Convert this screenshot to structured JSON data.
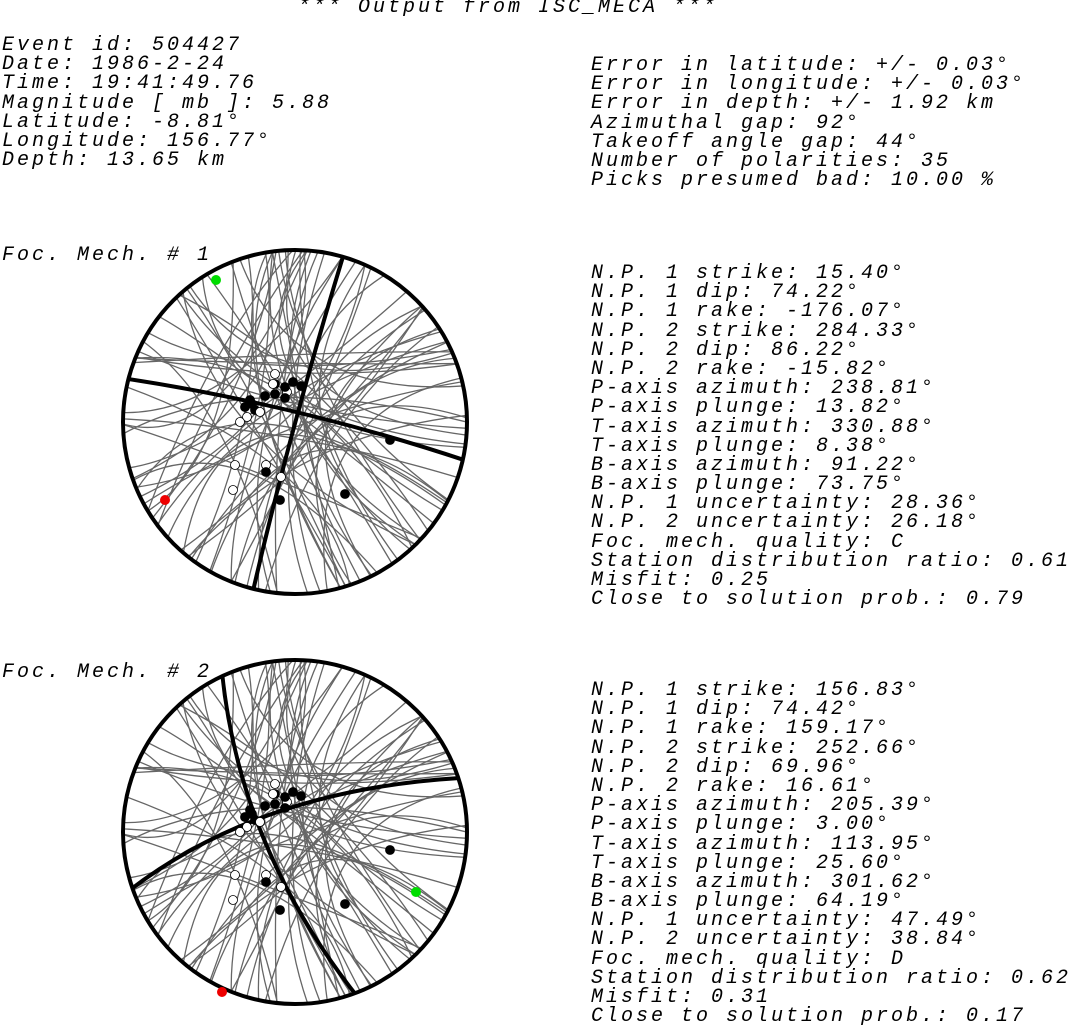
{
  "title": "*** Output from ISC_MECA ***",
  "event": [
    "Event id: 504427",
    "Date: 1986-2-24",
    "Time: 19:41:49.76",
    "Magnitude [ mb ]: 5.88",
    "Latitude: -8.81°",
    "Longitude: 156.77°",
    "Depth: 13.65 km"
  ],
  "errors": [
    "Error in latitude: +/- 0.03°",
    "Error in longitude: +/- 0.03°",
    "Error in depth: +/- 1.92 km",
    "Azimuthal gap: 92°",
    "Takeoff angle gap: 44°",
    "Number of polarities: 35",
    "Picks presumed bad: 10.00 %"
  ],
  "mechanisms": [
    {
      "label": "Foc. Mech. # 1",
      "lines": [
        "N.P. 1 strike: 15.40°",
        "N.P. 1 dip: 74.22°",
        "N.P. 1 rake: -176.07°",
        "N.P. 2 strike: 284.33°",
        "N.P. 2 dip: 86.22°",
        "N.P. 2 rake: -15.82°",
        "P-axis azimuth: 238.81°",
        "P-axis plunge: 13.82°",
        "T-axis azimuth: 330.88°",
        "T-axis plunge: 8.38°",
        "B-axis azimuth: 91.22°",
        "B-axis plunge: 73.75°",
        "N.P. 1 uncertainty: 28.36°",
        "N.P. 2 uncertainty: 26.18°",
        "Foc. mech. quality: C",
        "Station distribution ratio: 0.61",
        "Misfit: 0.25",
        "Close to solution prob.: 0.79"
      ]
    },
    {
      "label": "Foc. Mech. # 2",
      "lines": [
        "N.P. 1 strike: 156.83°",
        "N.P. 1 dip: 74.42°",
        "N.P. 1 rake: 159.17°",
        "N.P. 2 strike: 252.66°",
        "N.P. 2 dip: 69.96°",
        "N.P. 2 rake: 16.61°",
        "P-axis azimuth: 205.39°",
        "P-axis plunge: 3.00°",
        "T-axis azimuth: 113.95°",
        "T-axis plunge: 25.60°",
        "B-axis azimuth: 301.62°",
        "B-axis plunge: 64.19°",
        "N.P. 1 uncertainty: 47.49°",
        "N.P. 2 uncertainty: 38.84°",
        "Foc. mech. quality: D",
        "Station distribution ratio: 0.62",
        "Misfit: 0.31",
        "Close to solution prob.: 0.17"
      ]
    }
  ]
}
